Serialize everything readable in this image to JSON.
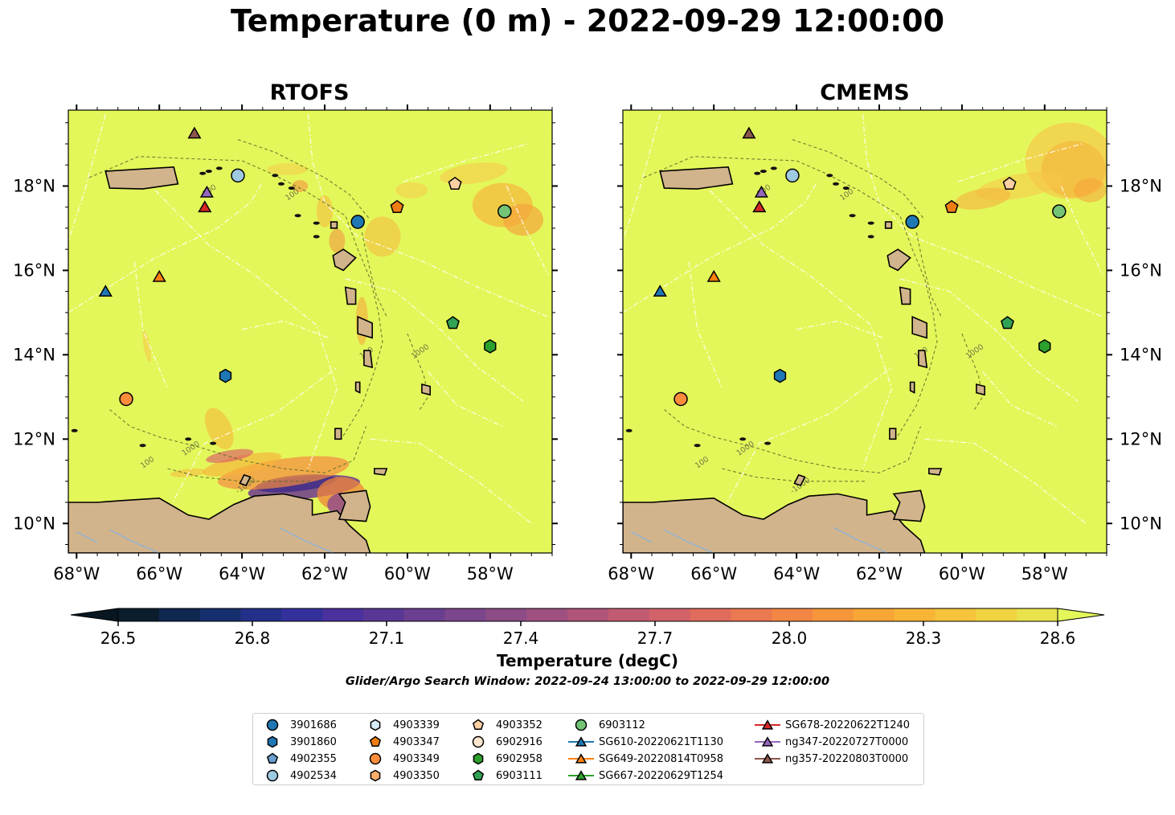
{
  "title": "Temperature (0 m) - 2022-09-29 12:00:00",
  "panels": [
    {
      "title": "RTOFS"
    },
    {
      "title": "CMEMS"
    }
  ],
  "axes": {
    "lon_labels": [
      "68°W",
      "66°W",
      "64°W",
      "62°W",
      "60°W",
      "58°W"
    ],
    "lat_labels": [
      "18°N",
      "16°N",
      "14°N",
      "12°N",
      "10°N"
    ],
    "lon_range": [
      -68.2,
      -56.5
    ],
    "lat_range": [
      9.3,
      19.8
    ]
  },
  "colorbar": {
    "label": "Temperature (degC)",
    "ticks": [
      "26.5",
      "26.8",
      "27.1",
      "27.4",
      "27.7",
      "28.0",
      "28.3",
      "28.6"
    ],
    "range": [
      26.5,
      28.6
    ],
    "extend": "both"
  },
  "search_window": "Glider/Argo Search Window: 2022-09-24 13:00:00 to 2022-09-29 12:00:00",
  "contour_labels": [
    "100",
    "1000",
    "-1000"
  ],
  "colors": {
    "ocean": "#e4f75a",
    "land": "#d2b48c",
    "warm_orange": "#f7b23b",
    "deep_purple": "#3d2a8a"
  },
  "platforms": [
    {
      "id": "3901686",
      "marker": "circle",
      "color": "#1f77b4",
      "lon": -61.2,
      "lat": 17.15
    },
    {
      "id": "3901860",
      "marker": "hexagon",
      "color": "#1f77b4",
      "lon": -64.4,
      "lat": 13.5
    },
    {
      "id": "4902355",
      "marker": "pentagon",
      "color": "#6a9fd0",
      "lon": null,
      "lat": null
    },
    {
      "id": "4902534",
      "marker": "circle",
      "color": "#9ecae1",
      "lon": -64.1,
      "lat": 18.25
    },
    {
      "id": "4903339",
      "marker": "hexagon",
      "color": "#d6eaf8",
      "lon": null,
      "lat": null
    },
    {
      "id": "4903347",
      "marker": "pentagon",
      "color": "#f07d12",
      "lon": -60.25,
      "lat": 17.5
    },
    {
      "id": "4903349",
      "marker": "circle",
      "color": "#fd8d3c",
      "lon": -66.8,
      "lat": 12.95
    },
    {
      "id": "4903350",
      "marker": "hexagon",
      "color": "#fdae6b",
      "lon": null,
      "lat": null
    },
    {
      "id": "4903352",
      "marker": "pentagon",
      "color": "#fdd0a2",
      "lon": -58.85,
      "lat": 18.05
    },
    {
      "id": "6902916",
      "marker": "circle",
      "color": "#fee6ce",
      "lon": null,
      "lat": null
    },
    {
      "id": "6902958",
      "marker": "hexagon",
      "color": "#2ca02c",
      "lon": -58.0,
      "lat": 14.2
    },
    {
      "id": "6903111",
      "marker": "pentagon",
      "color": "#31a354",
      "lon": -58.9,
      "lat": 14.75
    },
    {
      "id": "6903112",
      "marker": "circle",
      "color": "#74c476",
      "lon": -57.65,
      "lat": 17.4
    },
    {
      "id": "SG610-20220621T1130",
      "marker": "triangle",
      "color": "#1f77b4",
      "lon": -67.3,
      "lat": 15.5
    },
    {
      "id": "SG649-20220814T0958",
      "marker": "triangle",
      "color": "#ff7f0e",
      "lon": -66.0,
      "lat": 15.85
    },
    {
      "id": "SG667-20220629T1254",
      "marker": "triangle",
      "color": "#2ca02c",
      "lon": null,
      "lat": null
    },
    {
      "id": "SG678-20220622T1240",
      "marker": "triangle",
      "color": "#d62728",
      "lon": -64.9,
      "lat": 17.5
    },
    {
      "id": "ng347-20220727T0000",
      "marker": "triangle",
      "color": "#9467bd",
      "lon": -64.85,
      "lat": 17.85
    },
    {
      "id": "ng357-20220803T0000",
      "marker": "triangle",
      "color": "#8c564b",
      "lon": -65.15,
      "lat": 19.25
    }
  ]
}
